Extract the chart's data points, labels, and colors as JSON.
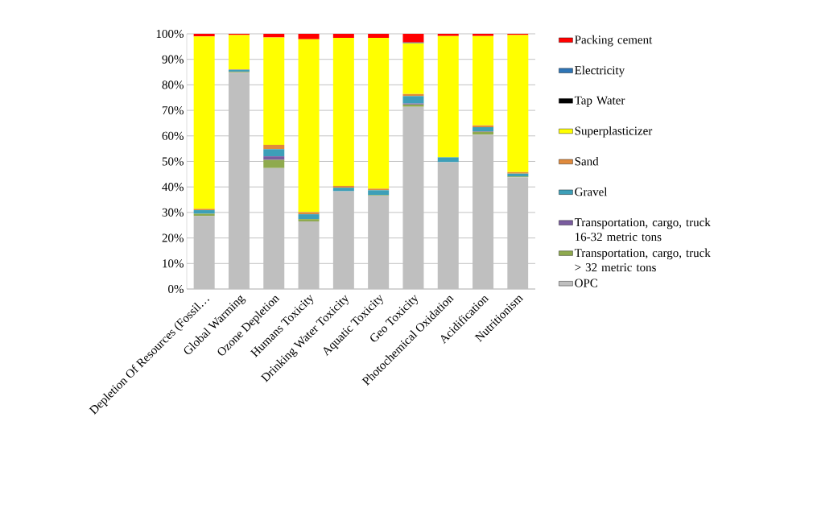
{
  "chart_data": {
    "type": "bar",
    "stacked": true,
    "grid": "y",
    "legend": "right",
    "categories": [
      "Depletion Of Resources (Fossil…",
      "Global Warming",
      "Ozone Depletion",
      "Humans Toxicity",
      "Drinking Water Toxicity",
      "Aquatic Toxicity",
      "Geo Toxicity",
      "Photochemical Oxidation",
      "Acidification",
      "Nutritionism"
    ],
    "ylim": [
      0,
      100
    ],
    "yticks": [
      {
        "value": 0,
        "label": "0%"
      },
      {
        "value": 10,
        "label": "10%"
      },
      {
        "value": 20,
        "label": "20%"
      },
      {
        "value": 30,
        "label": "30%"
      },
      {
        "value": 40,
        "label": "40%"
      },
      {
        "value": 50,
        "label": "50%"
      },
      {
        "value": 60,
        "label": "60%"
      },
      {
        "value": 70,
        "label": "70%"
      },
      {
        "value": 80,
        "label": "80%"
      },
      {
        "value": 90,
        "label": "90%"
      },
      {
        "value": 100,
        "label": "100%"
      }
    ],
    "series": [
      {
        "name": "OPC",
        "color": "#bfbfbf",
        "values": [
          28.6,
          84.8,
          47.4,
          26.5,
          38.3,
          36.6,
          71.4,
          49.7,
          60.5,
          43.8
        ]
      },
      {
        "name": "Transportation, cargo, truck > 32 metric tons",
        "color": "#8faa4e",
        "values": [
          0.9,
          0.3,
          3.2,
          0.9,
          null,
          0.2,
          0.9,
          null,
          1.1,
          0.3
        ]
      },
      {
        "name": "Transportation, cargo, truck 16-32 metric tons",
        "color": "#7a5c9f",
        "values": [
          null,
          0.1,
          1.4,
          null,
          0,
          0,
          0.4,
          0,
          0.2,
          0
        ]
      },
      {
        "name": "Gravel",
        "color": "#3d9fb8",
        "values": [
          1.4,
          0.7,
          2.8,
          1.9,
          1.4,
          1.9,
          2.9,
          1.9,
          1.6,
          1.1
        ]
      },
      {
        "name": "Sand",
        "color": "#e08a3c",
        "values": [
          0.5,
          0.2,
          1.7,
          0.8,
          0.7,
          0.6,
          0.8,
          null,
          0.7,
          0.6
        ]
      },
      {
        "name": "Superplasticizer",
        "color": "#ffff00",
        "values": [
          67.6,
          13.4,
          42.1,
          67.8,
          58.0,
          59.1,
          19.9,
          47.5,
          35.0,
          53.7
        ]
      },
      {
        "name": "Tap Water",
        "color": "#000000",
        "values": [
          0,
          0,
          0,
          0,
          0,
          0,
          0,
          0,
          0,
          0
        ]
      },
      {
        "name": "Electricity",
        "color": "#2e75b6",
        "values": [
          null,
          0,
          0,
          0,
          0,
          0,
          0.3,
          0,
          0,
          0
        ]
      },
      {
        "name": "Packing cement",
        "color": "#ff0000",
        "values": [
          1.0,
          0.5,
          1.4,
          2.1,
          1.6,
          1.6,
          3.4,
          0.9,
          0.9,
          0.5
        ]
      }
    ]
  }
}
